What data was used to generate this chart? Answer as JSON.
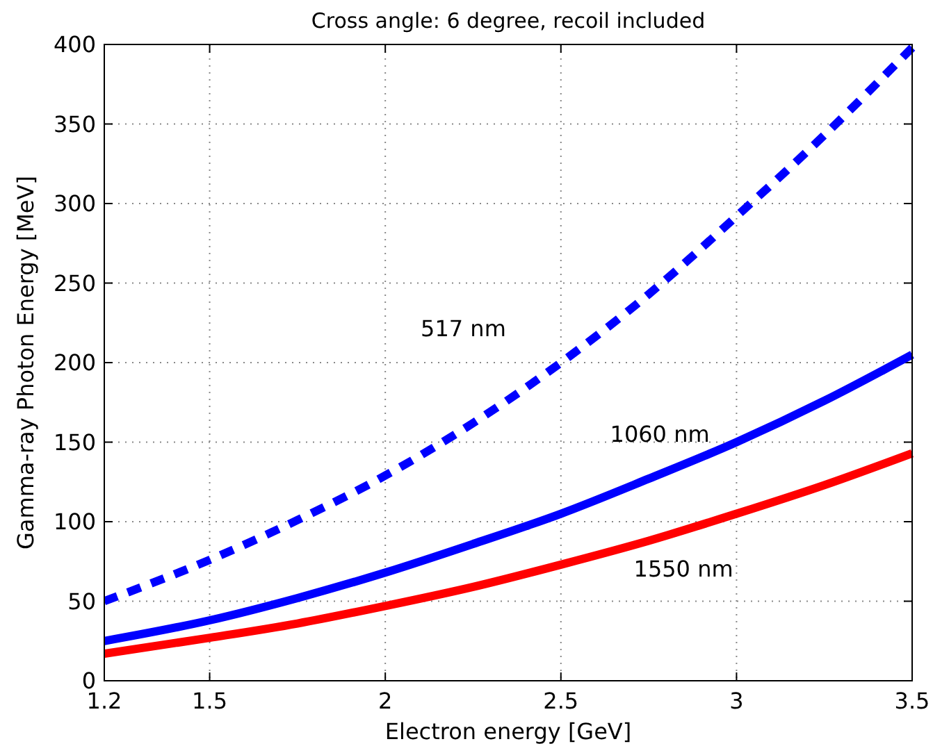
{
  "chart_data": {
    "type": "line",
    "title": "Cross angle: 6 degree, recoil included",
    "xlabel": "Electron energy [GeV]",
    "ylabel": "Gamma-ray Photon Energy [MeV]",
    "x": [
      1.2,
      1.5,
      1.75,
      2,
      2.25,
      2.5,
      2.75,
      3,
      3.25,
      3.5
    ],
    "series": [
      {
        "name": "517 nm",
        "color": "#0000ff",
        "line_style": "dashed",
        "values": [
          50,
          76,
          101,
          129,
          162,
          200,
          243,
          292,
          343,
          398
        ]
      },
      {
        "name": "1060 nm",
        "color": "#0000ff",
        "line_style": "solid",
        "values": [
          25,
          38,
          52,
          68,
          86,
          105,
          127,
          150,
          176,
          205
        ]
      },
      {
        "name": "1550 nm",
        "color": "#ff0000",
        "line_style": "solid",
        "values": [
          17,
          27,
          36,
          47,
          59,
          73,
          88,
          105,
          123,
          143
        ]
      }
    ],
    "xlim": [
      1.2,
      3.5
    ],
    "ylim": [
      0,
      400
    ],
    "xticks": [
      1.2,
      1.5,
      2,
      2.5,
      3,
      3.5
    ],
    "yticks": [
      0,
      50,
      100,
      150,
      200,
      250,
      300,
      350,
      400
    ],
    "grid": true,
    "marker": "none"
  }
}
